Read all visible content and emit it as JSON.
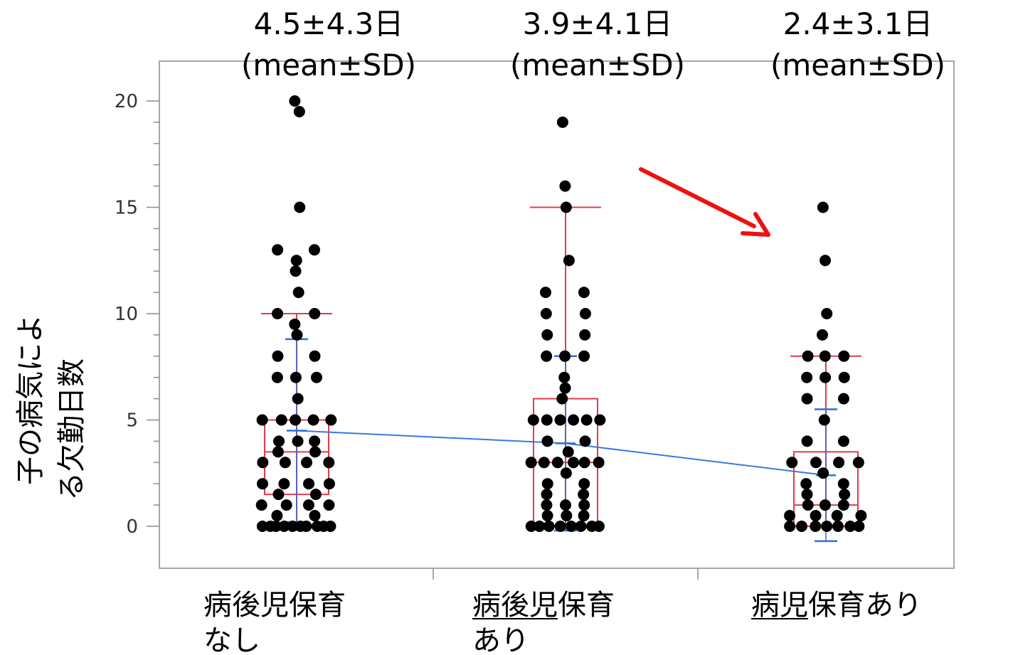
{
  "chart_data": {
    "type": "scatter",
    "ylabel_lines": [
      "子の病気によ",
      "る欠勤日数"
    ],
    "ylim": [
      -2,
      21
    ],
    "yticks": [
      0,
      5,
      10,
      15,
      20
    ],
    "grid": false,
    "categories": [
      {
        "name_lines": [
          "病後児保育",
          "なし"
        ],
        "underline": ""
      },
      {
        "name_lines": [
          "病後児保育",
          "あり"
        ],
        "underline": "病後児"
      },
      {
        "name_lines": [
          "病児保育あり"
        ],
        "underline": "病児"
      }
    ],
    "annotations": [
      {
        "stat": "4.5±4.3日",
        "note": "(mean±SD)"
      },
      {
        "stat": "3.9±4.1日",
        "note": "(mean±SD)"
      },
      {
        "stat": "2.4±3.1日",
        "note": "(mean±SD)"
      }
    ],
    "series": [
      {
        "mean": 4.5,
        "sd": 4.3,
        "box": {
          "q1": 1.5,
          "median": 3.5,
          "q3": 5,
          "whisker_low": 0,
          "whisker_high": 10
        },
        "points": [
          [
            0.95,
            20
          ],
          [
            0.94,
            19.5
          ],
          [
            0.94,
            15
          ],
          [
            0.95,
            13
          ],
          [
            0.94,
            13
          ],
          [
            0.93,
            12.5
          ],
          [
            0.93,
            12
          ],
          [
            0.94,
            11
          ],
          [
            0.95,
            10
          ],
          [
            0.93,
            10
          ],
          [
            0.95,
            9.5
          ],
          [
            0.94,
            9
          ],
          [
            0.93,
            8
          ],
          [
            0.95,
            8
          ],
          [
            0.94,
            7
          ],
          [
            0.93,
            7
          ],
          [
            0.95,
            7
          ],
          [
            0.94,
            6
          ],
          [
            0.95,
            5
          ],
          [
            0.93,
            5
          ],
          [
            0.96,
            5
          ],
          [
            0.92,
            5
          ],
          [
            0.94,
            5
          ],
          [
            0.93,
            4
          ],
          [
            0.94,
            4
          ],
          [
            0.92,
            4
          ],
          [
            0.93,
            3.5
          ],
          [
            0.95,
            3.5
          ],
          [
            0.93,
            3
          ],
          [
            0.94,
            3
          ],
          [
            0.93,
            3
          ],
          [
            0.95,
            3
          ],
          [
            0.93,
            2
          ],
          [
            0.96,
            2
          ],
          [
            0.94,
            2
          ],
          [
            0.93,
            2
          ],
          [
            0.95,
            1.5
          ],
          [
            0.94,
            1.5
          ],
          [
            0.93,
            1
          ],
          [
            0.94,
            1
          ],
          [
            0.92,
            1
          ],
          [
            0.95,
            1
          ],
          [
            0.94,
            0.5
          ],
          [
            0.93,
            0.5
          ],
          [
            0.93,
            0
          ],
          [
            0.94,
            0
          ],
          [
            0.95,
            0
          ],
          [
            0.92,
            0
          ],
          [
            0.96,
            0
          ],
          [
            0.94,
            0
          ],
          [
            0.93,
            0
          ],
          [
            0.95,
            0
          ],
          [
            0.92,
            0
          ],
          [
            0.96,
            0
          ]
        ]
      },
      {
        "mean": 3.9,
        "sd": 4.1,
        "box": {
          "q1": 0,
          "median": 3,
          "q3": 6,
          "whisker_low": 0,
          "whisker_high": 15
        },
        "points": [
          [
            2,
            19
          ],
          [
            2,
            16
          ],
          [
            2,
            15
          ],
          [
            2,
            12.5
          ],
          [
            2,
            11
          ],
          [
            2,
            11
          ],
          [
            2,
            10
          ],
          [
            2,
            10
          ],
          [
            2,
            9
          ],
          [
            2,
            9
          ],
          [
            2,
            8
          ],
          [
            2,
            8
          ],
          [
            2,
            8
          ],
          [
            2,
            7
          ],
          [
            2,
            6.5
          ],
          [
            2,
            6
          ],
          [
            2,
            5
          ],
          [
            2,
            5
          ],
          [
            2,
            5
          ],
          [
            2,
            5
          ],
          [
            2,
            5
          ],
          [
            2,
            5
          ],
          [
            2,
            4
          ],
          [
            2,
            4
          ],
          [
            2,
            3.5
          ],
          [
            2,
            3
          ],
          [
            2,
            3
          ],
          [
            2,
            3
          ],
          [
            2,
            3
          ],
          [
            2,
            3
          ],
          [
            2,
            3
          ],
          [
            2,
            2.5
          ],
          [
            2,
            2
          ],
          [
            2,
            2
          ],
          [
            2,
            1.5
          ],
          [
            2,
            1.5
          ],
          [
            2,
            1
          ],
          [
            2,
            1
          ],
          [
            2,
            1
          ],
          [
            2,
            0.5
          ],
          [
            2,
            0.5
          ],
          [
            2,
            0.5
          ],
          [
            2,
            0
          ],
          [
            2,
            0
          ],
          [
            2,
            0
          ],
          [
            2,
            0
          ],
          [
            2,
            0
          ],
          [
            2,
            0
          ],
          [
            2,
            0
          ],
          [
            2,
            0
          ]
        ]
      },
      {
        "mean": 2.4,
        "sd": 3.1,
        "box": {
          "q1": 0,
          "median": 1,
          "q3": 3.5,
          "whisker_low": 0,
          "whisker_high": 8
        },
        "points": [
          [
            3,
            15
          ],
          [
            3,
            12.5
          ],
          [
            3,
            10
          ],
          [
            3,
            9
          ],
          [
            3,
            8
          ],
          [
            3,
            8
          ],
          [
            3,
            8
          ],
          [
            3,
            7
          ],
          [
            3,
            7
          ],
          [
            3,
            7
          ],
          [
            3,
            6
          ],
          [
            3,
            6
          ],
          [
            3,
            5
          ],
          [
            3,
            4
          ],
          [
            3,
            4
          ],
          [
            3,
            3
          ],
          [
            3,
            3
          ],
          [
            3,
            3
          ],
          [
            3,
            3
          ],
          [
            3,
            2.5
          ],
          [
            3,
            2
          ],
          [
            3,
            2
          ],
          [
            3,
            1.5
          ],
          [
            3,
            1.5
          ],
          [
            3,
            1
          ],
          [
            3,
            1
          ],
          [
            3,
            1
          ],
          [
            3,
            0.5
          ],
          [
            3,
            0.5
          ],
          [
            3,
            0.5
          ],
          [
            3,
            0.5
          ],
          [
            3,
            0
          ],
          [
            3,
            0
          ],
          [
            3,
            0
          ],
          [
            3,
            0
          ],
          [
            3,
            0
          ],
          [
            3,
            0
          ],
          [
            3,
            0
          ]
        ]
      }
    ]
  }
}
